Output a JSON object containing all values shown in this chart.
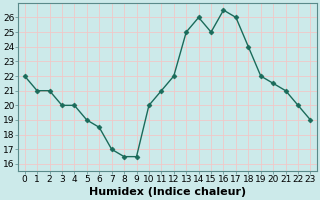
{
  "x": [
    0,
    1,
    2,
    3,
    4,
    5,
    6,
    7,
    8,
    9,
    10,
    11,
    12,
    13,
    14,
    15,
    16,
    17,
    18,
    19,
    20,
    21,
    22,
    23
  ],
  "y": [
    22,
    21,
    21,
    20,
    20,
    19,
    18.5,
    17,
    16.5,
    16.5,
    20,
    21,
    22,
    25,
    26,
    25,
    26.5,
    26,
    24,
    22,
    21.5,
    21,
    20,
    19
  ],
  "xlabel": "Humidex (Indice chaleur)",
  "xlim": [
    -0.5,
    23.5
  ],
  "ylim": [
    15.5,
    27
  ],
  "yticks": [
    16,
    17,
    18,
    19,
    20,
    21,
    22,
    23,
    24,
    25,
    26
  ],
  "xticks": [
    0,
    1,
    2,
    3,
    4,
    5,
    6,
    7,
    8,
    9,
    10,
    11,
    12,
    13,
    14,
    15,
    16,
    17,
    18,
    19,
    20,
    21,
    22,
    23
  ],
  "line_color": "#1a6b5a",
  "marker": "D",
  "marker_size": 2.5,
  "bg_color": "#cceaea",
  "grid_color": "#f0c8c8",
  "spine_color": "#5a8a8a",
  "tick_label_fontsize": 6.5,
  "xlabel_fontsize": 8
}
